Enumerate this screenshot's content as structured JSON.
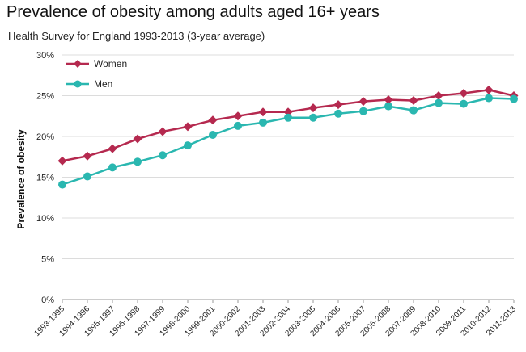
{
  "title": "Prevalence of obesity among adults aged 16+ years",
  "subtitle": "Health Survey for England 1993-2013 (3-year average)",
  "chart_data": {
    "type": "line",
    "ylabel": "Prevalence of obesity",
    "xlabel": "",
    "ylim": [
      0,
      30
    ],
    "yticks": [
      0,
      5,
      10,
      15,
      20,
      25,
      30
    ],
    "ytick_labels": [
      "0%",
      "5%",
      "10%",
      "15%",
      "20%",
      "25%",
      "30%"
    ],
    "grid": true,
    "legend_position": "top-left",
    "categories": [
      "1993-1995",
      "1994-1996",
      "1995-1997",
      "1996-1998",
      "1997-1999",
      "1998-2000",
      "1999-2001",
      "2000-2002",
      "2001-2003",
      "2002-2004",
      "2003-2005",
      "2004-2006",
      "2005-2007",
      "2006-2008",
      "2007-2009",
      "2008-2010",
      "2009-2011",
      "2010-2012",
      "2011-2013"
    ],
    "series": [
      {
        "name": "Women",
        "color": "#b5294f",
        "marker": "diamond",
        "values": [
          17.0,
          17.6,
          18.5,
          19.7,
          20.6,
          21.2,
          22.0,
          22.5,
          23.0,
          23.0,
          23.5,
          23.9,
          24.3,
          24.5,
          24.4,
          25.0,
          25.3,
          25.7,
          25.0
        ]
      },
      {
        "name": "Men",
        "color": "#2ab7b0",
        "marker": "circle",
        "values": [
          14.1,
          15.1,
          16.2,
          16.9,
          17.7,
          18.9,
          20.2,
          21.3,
          21.7,
          22.3,
          22.3,
          22.8,
          23.1,
          23.7,
          23.2,
          24.1,
          24.0,
          24.7,
          24.6
        ]
      }
    ]
  }
}
